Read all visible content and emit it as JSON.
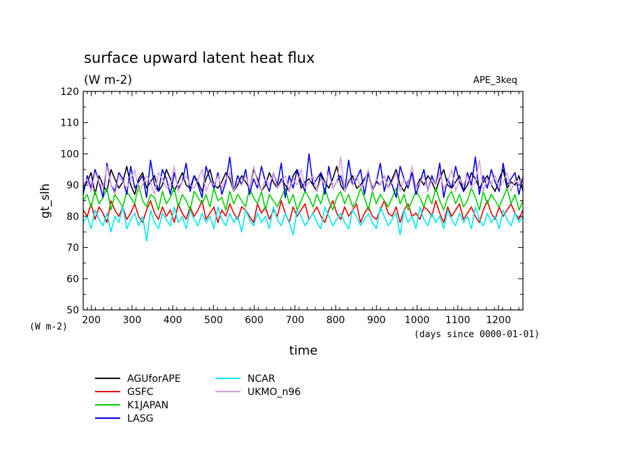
{
  "chart_data": {
    "type": "line",
    "title": "surface upward latent heat flux",
    "subtitle": "(W m-2)",
    "dataset_label": "APE_3keq",
    "xlabel": "time",
    "x_unit": "(days since 0000-01-01)",
    "ylabel": "gt_slh",
    "y_unit": "(W m-2)",
    "xlim": [
      180,
      1260
    ],
    "ylim": [
      50,
      120
    ],
    "x_ticks": [
      200,
      300,
      400,
      500,
      600,
      700,
      800,
      900,
      1000,
      1100,
      1200
    ],
    "y_ticks": [
      50,
      60,
      70,
      80,
      90,
      100,
      110,
      120
    ],
    "grid": false,
    "legend_position": "bottom-left",
    "series": [
      {
        "name": "AGUforAPE",
        "color": "#000000",
        "values": [
          89,
          91,
          94,
          87,
          93,
          90,
          88,
          95,
          92,
          89,
          91,
          96,
          90,
          87,
          92,
          94,
          89,
          91,
          93,
          88,
          90,
          95,
          92,
          88,
          91,
          94,
          90,
          89,
          93,
          91,
          88,
          92,
          95,
          90,
          89,
          91,
          94,
          92,
          88,
          90,
          93,
          91,
          89,
          95,
          92,
          88,
          90,
          94,
          91,
          89,
          92,
          90,
          88,
          93,
          95,
          89,
          91,
          92,
          90,
          88,
          94,
          91,
          89,
          92,
          96,
          90,
          88,
          91,
          93,
          89,
          90,
          92,
          94,
          88,
          91,
          90,
          93,
          89,
          92,
          95,
          90,
          88,
          91,
          94,
          89,
          92,
          90,
          93,
          91,
          88,
          92,
          95,
          90,
          89,
          91,
          93,
          88,
          90,
          94,
          92,
          89,
          91,
          93,
          90,
          88,
          92,
          95,
          89,
          91,
          90,
          93,
          88
        ]
      },
      {
        "name": "GSFC",
        "color": "#e00000",
        "values": [
          82,
          80,
          84,
          79,
          83,
          81,
          78,
          85,
          82,
          80,
          83,
          79,
          81,
          84,
          80,
          78,
          82,
          85,
          81,
          79,
          83,
          80,
          82,
          78,
          84,
          81,
          79,
          83,
          80,
          82,
          85,
          79,
          81,
          83,
          78,
          82,
          80,
          84,
          81,
          79,
          83,
          82,
          80,
          78,
          84,
          81,
          83,
          79,
          82,
          80,
          85,
          81,
          78,
          83,
          80,
          82,
          84,
          79,
          81,
          83,
          80,
          78,
          82,
          85,
          81,
          79,
          83,
          80,
          82,
          84,
          78,
          81,
          83,
          80,
          79,
          82,
          85,
          81,
          80,
          83,
          78,
          82,
          84,
          80,
          81,
          79,
          83,
          82,
          80,
          85,
          81,
          78,
          83,
          80,
          82,
          84,
          79,
          81,
          83,
          80,
          78,
          82,
          85,
          81,
          79,
          83,
          80,
          82,
          84,
          81,
          79,
          82
        ]
      },
      {
        "name": "K1JAPAN",
        "color": "#00d000",
        "values": [
          85,
          87,
          83,
          88,
          84,
          86,
          89,
          82,
          87,
          85,
          83,
          88,
          86,
          84,
          90,
          85,
          83,
          87,
          86,
          82,
          88,
          84,
          86,
          89,
          83,
          87,
          85,
          82,
          88,
          86,
          84,
          87,
          83,
          89,
          85,
          86,
          82,
          88,
          84,
          87,
          85,
          83,
          89,
          86,
          84,
          88,
          82,
          87,
          85,
          83,
          86,
          89,
          84,
          87,
          82,
          85,
          88,
          86,
          83,
          87,
          84,
          89,
          85,
          82,
          86,
          88,
          84,
          87,
          83,
          85,
          89,
          86,
          82,
          88,
          84,
          87,
          85,
          83,
          86,
          89,
          84,
          87,
          82,
          85,
          88,
          86,
          83,
          87,
          84,
          89,
          85,
          82,
          86,
          88,
          84,
          87,
          83,
          85,
          89,
          86,
          82,
          88,
          84,
          87,
          85,
          83,
          86,
          89,
          84,
          87,
          82,
          85
        ]
      },
      {
        "name": "LASG",
        "color": "#0000e0",
        "values": [
          87,
          93,
          89,
          95,
          91,
          86,
          97,
          90,
          88,
          94,
          92,
          87,
          96,
          89,
          91,
          93,
          86,
          98,
          90,
          88,
          95,
          92,
          87,
          94,
          89,
          91,
          97,
          88,
          93,
          90,
          86,
          96,
          92,
          89,
          94,
          87,
          91,
          99,
          88,
          93,
          90,
          95,
          87,
          92,
          89,
          96,
          91,
          88,
          94,
          90,
          97,
          86,
          93,
          89,
          95,
          91,
          88,
          100,
          90,
          92,
          94,
          87,
          96,
          89,
          91,
          93,
          88,
          98,
          90,
          92,
          95,
          87,
          94,
          89,
          91,
          97,
          88,
          93,
          90,
          86,
          96,
          92,
          89,
          94,
          87,
          91,
          95,
          88,
          93,
          90,
          97,
          86,
          92,
          89,
          96,
          91,
          88,
          94,
          90,
          99,
          87,
          93,
          89,
          95,
          91,
          88,
          97,
          90,
          92,
          94,
          87,
          93
        ]
      },
      {
        "name": "NCAR",
        "color": "#00e8f0",
        "values": [
          78,
          80,
          76,
          82,
          79,
          77,
          81,
          75,
          80,
          78,
          83,
          76,
          79,
          81,
          77,
          80,
          72,
          82,
          78,
          76,
          81,
          79,
          77,
          83,
          78,
          80,
          76,
          82,
          79,
          77,
          81,
          78,
          80,
          76,
          83,
          79,
          77,
          81,
          78,
          80,
          75,
          82,
          79,
          77,
          81,
          78,
          80,
          76,
          83,
          79,
          77,
          81,
          78,
          74,
          82,
          80,
          77,
          79,
          81,
          78,
          76,
          83,
          80,
          77,
          79,
          81,
          78,
          76,
          82,
          80,
          77,
          79,
          81,
          78,
          76,
          83,
          80,
          77,
          79,
          81,
          74,
          82,
          78,
          80,
          76,
          83,
          79,
          77,
          81,
          78,
          80,
          76,
          82,
          79,
          77,
          81,
          78,
          80,
          76,
          83,
          79,
          77,
          81,
          78,
          80,
          76,
          82,
          79,
          77,
          81,
          78,
          80
        ]
      },
      {
        "name": "UKMO_n96",
        "color": "#d8a0d8",
        "values": [
          90,
          92,
          88,
          94,
          91,
          89,
          96,
          90,
          87,
          93,
          91,
          89,
          92,
          95,
          88,
          90,
          93,
          91,
          87,
          94,
          92,
          89,
          90,
          96,
          88,
          91,
          93,
          90,
          89,
          92,
          95,
          88,
          91,
          90,
          93,
          89,
          92,
          94,
          88,
          91,
          90,
          93,
          89,
          96,
          91,
          88,
          92,
          90,
          94,
          89,
          91,
          93,
          88,
          92,
          90,
          95,
          89,
          91,
          93,
          88,
          92,
          90,
          94,
          89,
          91,
          99,
          88,
          92,
          90,
          93,
          89,
          91,
          95,
          88,
          92,
          90,
          93,
          89,
          91,
          94,
          88,
          92,
          90,
          96,
          89,
          91,
          93,
          88,
          92,
          90,
          94,
          89,
          91,
          95,
          88,
          92,
          90,
          93,
          89,
          91,
          98,
          88,
          92,
          90,
          93,
          89,
          91,
          94,
          88,
          92,
          90,
          93
        ]
      }
    ]
  }
}
